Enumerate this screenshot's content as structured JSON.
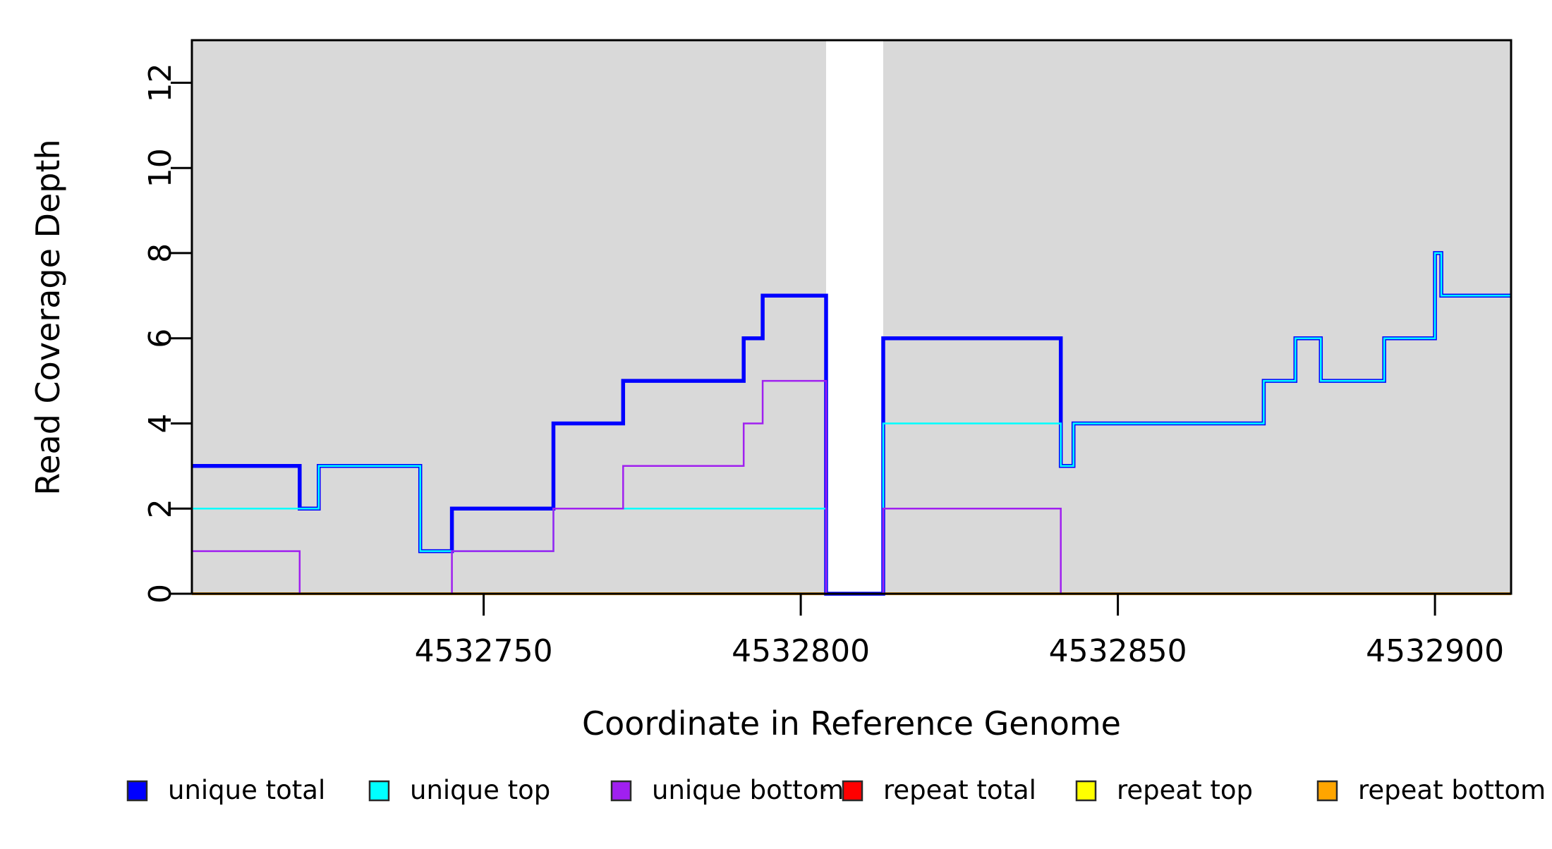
{
  "figure": {
    "background": "#ffffff",
    "shaded_band_color": "#d9d9d9",
    "box_color": "#000000"
  },
  "chart_data": {
    "type": "line",
    "subtype": "step",
    "title": "",
    "xlabel": "Coordinate in Reference Genome",
    "ylabel": "Read Coverage Depth",
    "xlim": [
      4532704,
      4532912
    ],
    "ylim": [
      0,
      13
    ],
    "x_ticks": [
      4532750,
      4532800,
      4532850,
      4532900
    ],
    "y_ticks": [
      0,
      2,
      4,
      6,
      8,
      10,
      12
    ],
    "grid": false,
    "legend_position": "bottom",
    "shaded_regions": [
      [
        4532704,
        4532804
      ],
      [
        4532813,
        4532912
      ]
    ],
    "gap_region": [
      4532804,
      4532813
    ],
    "series": [
      {
        "name": "repeat total",
        "color": "#ff0000",
        "width": 4,
        "steps": [
          [
            4532704,
            0
          ]
        ]
      },
      {
        "name": "repeat top",
        "color": "#ffff00",
        "width": 2.5,
        "steps": [
          [
            4532704,
            0
          ]
        ]
      },
      {
        "name": "repeat bottom",
        "color": "#ffa500",
        "width": 4,
        "steps": [
          [
            4532704,
            0
          ]
        ]
      },
      {
        "name": "unique total",
        "color": "#0000ff",
        "width": 5.5,
        "steps": [
          [
            4532704,
            3
          ],
          [
            4532721,
            2
          ],
          [
            4532724,
            3
          ],
          [
            4532740,
            1
          ],
          [
            4532745,
            2
          ],
          [
            4532761,
            4
          ],
          [
            4532772,
            5
          ],
          [
            4532791,
            6
          ],
          [
            4532794,
            7
          ],
          [
            4532804,
            0
          ],
          [
            4532813,
            6
          ],
          [
            4532841,
            3
          ],
          [
            4532843,
            4
          ],
          [
            4532873,
            5
          ],
          [
            4532878,
            6
          ],
          [
            4532882,
            5
          ],
          [
            4532892,
            6
          ],
          [
            4532900,
            8
          ],
          [
            4532901,
            7
          ]
        ]
      },
      {
        "name": "unique top",
        "color": "#00ffff",
        "width": 2.5,
        "steps": [
          [
            4532704,
            2
          ],
          [
            4532724,
            3
          ],
          [
            4532740,
            1
          ],
          [
            4532761,
            2
          ],
          [
            4532804,
            0
          ],
          [
            4532813,
            4
          ],
          [
            4532841,
            3
          ],
          [
            4532843,
            4
          ],
          [
            4532873,
            5
          ],
          [
            4532878,
            6
          ],
          [
            4532882,
            5
          ],
          [
            4532892,
            6
          ],
          [
            4532900,
            8
          ],
          [
            4532901,
            7
          ]
        ]
      },
      {
        "name": "unique bottom",
        "color": "#a020f0",
        "width": 2.5,
        "steps": [
          [
            4532704,
            1
          ],
          [
            4532721,
            0
          ],
          [
            4532745,
            1
          ],
          [
            4532761,
            2
          ],
          [
            4532772,
            3
          ],
          [
            4532791,
            4
          ],
          [
            4532794,
            5
          ],
          [
            4532804,
            0
          ],
          [
            4532813,
            2
          ],
          [
            4532841,
            0
          ]
        ]
      }
    ],
    "legend": [
      {
        "label": "unique total",
        "color": "#0000ff"
      },
      {
        "label": "unique top",
        "color": "#00ffff"
      },
      {
        "label": "unique bottom",
        "color": "#a020f0"
      },
      {
        "label": "repeat total",
        "color": "#ff0000"
      },
      {
        "label": "repeat top",
        "color": "#ffff00"
      },
      {
        "label": "repeat bottom",
        "color": "#ffa500"
      }
    ]
  }
}
